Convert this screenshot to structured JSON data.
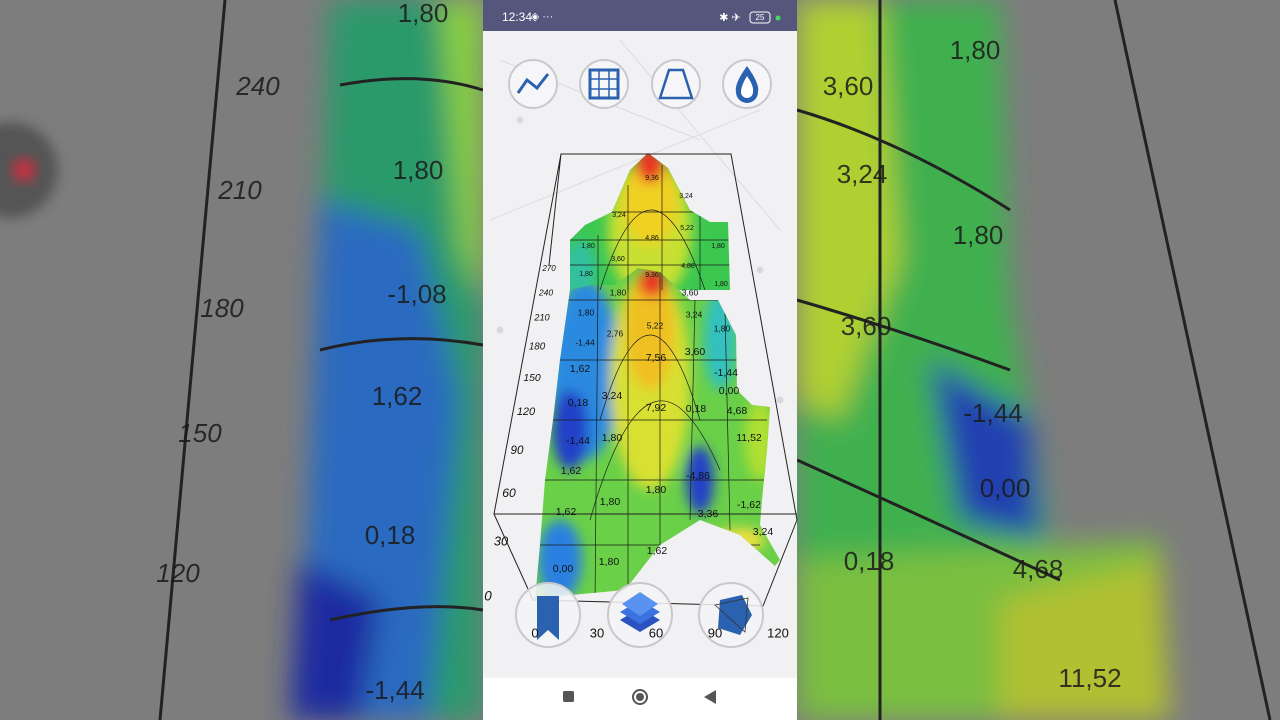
{
  "status_bar": {
    "time": "12:34",
    "battery": "25"
  },
  "plot": {
    "y_axis_labels": [
      "270",
      "240",
      "210",
      "180",
      "150",
      "120",
      "90",
      "60",
      "30",
      "0"
    ],
    "x_axis_labels": [
      "0",
      "30",
      "60",
      "90",
      "120"
    ],
    "contour_labels": [
      "9,36",
      "3,24",
      "3,24",
      "4,86",
      "5,22",
      "1,80",
      "1,80",
      "3,60",
      "4,86",
      "1,80",
      "1,80",
      "9,36",
      "1,80",
      "3,60",
      "1,80",
      "5,22",
      "3,24",
      "1,80",
      "-1,44",
      "2,76",
      "7,56",
      "3,60",
      "-1,44",
      "1,62",
      "0,00",
      "0,18",
      "3,24",
      "7,92",
      "0,18",
      "4,68",
      "-1,44",
      "1,80",
      "11,52",
      "1,62",
      "-4,86",
      "1,80",
      "1,80",
      "3,36",
      "-1,62",
      "1,62",
      "3,24",
      "0,00",
      "1,80",
      "1,62"
    ]
  },
  "background": {
    "left_labels": [
      "1,80",
      "240",
      "1,80",
      "210",
      "180",
      "-1,08",
      "1,62",
      "150",
      "0,18",
      "120",
      "-1,44"
    ],
    "right_labels": [
      "1,80",
      "3,60",
      "3,24",
      "1,80",
      "3,60",
      "-1,44",
      "0,00",
      "0,18",
      "4,68",
      "11,52"
    ]
  }
}
